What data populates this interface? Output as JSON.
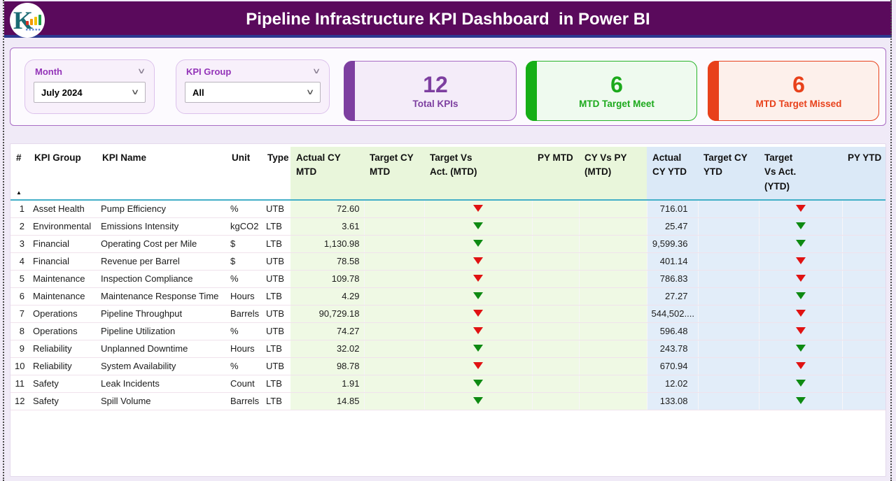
{
  "header": {
    "title": "Pipeline Infrastructure KPI Dashboard  in Power BI",
    "logo_letter": "K",
    "logo_stars": "★★★★★"
  },
  "filters": {
    "month": {
      "label": "Month",
      "value": "July 2024"
    },
    "kpi_group": {
      "label": "KPI Group",
      "value": "All"
    }
  },
  "cards": [
    {
      "value": "12",
      "label": "Total KPIs",
      "accent": "#7D3FA0"
    },
    {
      "value": "6",
      "label": "MTD Target Meet",
      "accent": "#16AF16"
    },
    {
      "value": "6",
      "label": "MTD Target Missed",
      "accent": "#E8411B"
    }
  ],
  "indicator_colors": {
    "red": "#E01212",
    "green": "#0E8A12"
  },
  "table": {
    "sort_icon": "▲",
    "columns": [
      "#",
      "KPI Group",
      "KPI Name",
      "Unit",
      "Type",
      "Actual CY MTD",
      "Target CY MTD",
      "Target Vs Act. (MTD)",
      "PY MTD",
      "CY Vs PY (MTD)",
      "Actual CY YTD",
      "Target CY YTD",
      "Target Vs Act. (YTD)",
      "PY YTD"
    ],
    "rows": [
      {
        "num": "1",
        "group": "Asset Health",
        "name": "Pump Efficiency",
        "unit": "%",
        "type": "UTB",
        "actual_mtd": "72.60",
        "target_mtd": "",
        "tva_mtd": "red",
        "py_mtd": "",
        "cyvspy_mtd": "",
        "actual_ytd": "716.01",
        "target_ytd": "",
        "tva_ytd": "red",
        "py_ytd": ""
      },
      {
        "num": "2",
        "group": "Environmental",
        "name": "Emissions Intensity",
        "unit": "kgCO2",
        "type": "LTB",
        "actual_mtd": "3.61",
        "target_mtd": "",
        "tva_mtd": "green",
        "py_mtd": "",
        "cyvspy_mtd": "",
        "actual_ytd": "25.47",
        "target_ytd": "",
        "tva_ytd": "green",
        "py_ytd": ""
      },
      {
        "num": "3",
        "group": "Financial",
        "name": "Operating Cost per Mile",
        "unit": "$",
        "type": "LTB",
        "actual_mtd": "1,130.98",
        "target_mtd": "",
        "tva_mtd": "green",
        "py_mtd": "",
        "cyvspy_mtd": "",
        "actual_ytd": "9,599.36",
        "target_ytd": "",
        "tva_ytd": "green",
        "py_ytd": ""
      },
      {
        "num": "4",
        "group": "Financial",
        "name": "Revenue per Barrel",
        "unit": "$",
        "type": "UTB",
        "actual_mtd": "78.58",
        "target_mtd": "",
        "tva_mtd": "red",
        "py_mtd": "",
        "cyvspy_mtd": "",
        "actual_ytd": "401.14",
        "target_ytd": "",
        "tva_ytd": "red",
        "py_ytd": ""
      },
      {
        "num": "5",
        "group": "Maintenance",
        "name": "Inspection Compliance",
        "unit": "%",
        "type": "UTB",
        "actual_mtd": "109.78",
        "target_mtd": "",
        "tva_mtd": "red",
        "py_mtd": "",
        "cyvspy_mtd": "",
        "actual_ytd": "786.83",
        "target_ytd": "",
        "tva_ytd": "red",
        "py_ytd": ""
      },
      {
        "num": "6",
        "group": "Maintenance",
        "name": "Maintenance Response Time",
        "unit": "Hours",
        "type": "LTB",
        "actual_mtd": "4.29",
        "target_mtd": "",
        "tva_mtd": "green",
        "py_mtd": "",
        "cyvspy_mtd": "",
        "actual_ytd": "27.27",
        "target_ytd": "",
        "tva_ytd": "green",
        "py_ytd": ""
      },
      {
        "num": "7",
        "group": "Operations",
        "name": "Pipeline Throughput",
        "unit": "Barrels",
        "type": "UTB",
        "actual_mtd": "90,729.18",
        "target_mtd": "",
        "tva_mtd": "red",
        "py_mtd": "",
        "cyvspy_mtd": "",
        "actual_ytd": "544,502....",
        "target_ytd": "",
        "tva_ytd": "red",
        "py_ytd": ""
      },
      {
        "num": "8",
        "group": "Operations",
        "name": "Pipeline Utilization",
        "unit": "%",
        "type": "UTB",
        "actual_mtd": "74.27",
        "target_mtd": "",
        "tva_mtd": "red",
        "py_mtd": "",
        "cyvspy_mtd": "",
        "actual_ytd": "596.48",
        "target_ytd": "",
        "tva_ytd": "red",
        "py_ytd": ""
      },
      {
        "num": "9",
        "group": "Reliability",
        "name": "Unplanned Downtime",
        "unit": "Hours",
        "type": "LTB",
        "actual_mtd": "32.02",
        "target_mtd": "",
        "tva_mtd": "green",
        "py_mtd": "",
        "cyvspy_mtd": "",
        "actual_ytd": "243.78",
        "target_ytd": "",
        "tva_ytd": "green",
        "py_ytd": ""
      },
      {
        "num": "10",
        "group": "Reliability",
        "name": "System Availability",
        "unit": "%",
        "type": "UTB",
        "actual_mtd": "98.78",
        "target_mtd": "",
        "tva_mtd": "red",
        "py_mtd": "",
        "cyvspy_mtd": "",
        "actual_ytd": "670.94",
        "target_ytd": "",
        "tva_ytd": "red",
        "py_ytd": ""
      },
      {
        "num": "11",
        "group": "Safety",
        "name": "Leak Incidents",
        "unit": "Count",
        "type": "LTB",
        "actual_mtd": "1.91",
        "target_mtd": "",
        "tva_mtd": "green",
        "py_mtd": "",
        "cyvspy_mtd": "",
        "actual_ytd": "12.02",
        "target_ytd": "",
        "tva_ytd": "green",
        "py_ytd": ""
      },
      {
        "num": "12",
        "group": "Safety",
        "name": "Spill Volume",
        "unit": "Barrels",
        "type": "LTB",
        "actual_mtd": "14.85",
        "target_mtd": "",
        "tva_mtd": "green",
        "py_mtd": "",
        "cyvspy_mtd": "",
        "actual_ytd": "133.08",
        "target_ytd": "",
        "tva_ytd": "green",
        "py_ytd": ""
      }
    ]
  }
}
